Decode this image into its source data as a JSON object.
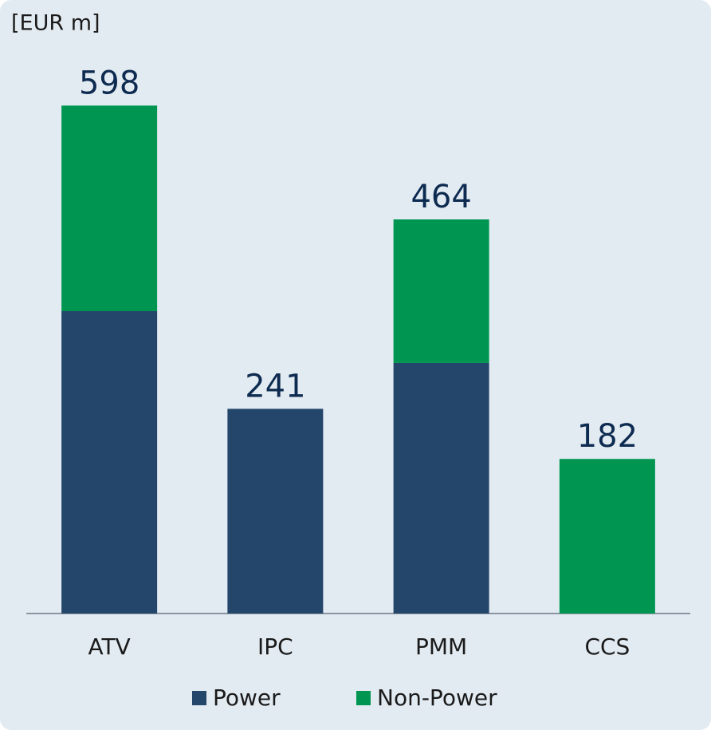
{
  "chart_data": {
    "type": "stacked-bar",
    "title": "[EUR m]",
    "categories": [
      "ATV",
      "IPC",
      "PMM",
      "CCS"
    ],
    "series": [
      {
        "name": "Power",
        "color": "#24466b",
        "values": [
          356,
          241,
          295,
          0
        ]
      },
      {
        "name": "Non-Power",
        "color": "#009651",
        "values": [
          242,
          0,
          169,
          182
        ]
      }
    ],
    "totals": [
      598,
      241,
      464,
      182
    ],
    "ylim": [
      0,
      650
    ]
  }
}
